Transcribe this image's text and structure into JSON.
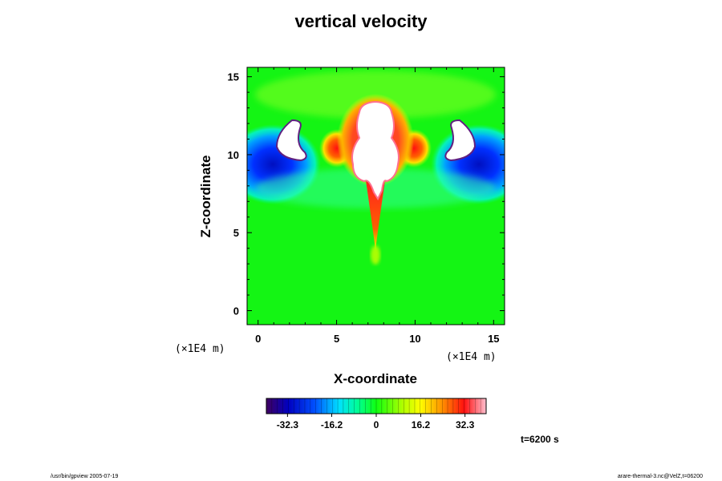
{
  "chart_data": {
    "type": "heatmap",
    "title": "vertical velocity",
    "xlabel": "X-coordinate",
    "ylabel": "Z-coordinate",
    "x_unit": "(×1E4 m)",
    "y_unit": "(×1E4 m)",
    "xlim": [
      -0.7,
      15.7
    ],
    "ylim": [
      -0.9,
      15.6
    ],
    "x_ticks": [
      0,
      5,
      10,
      15
    ],
    "y_ticks": [
      0,
      5,
      10,
      15
    ],
    "colorbar": {
      "min": -40,
      "max": 40,
      "ticks": [
        -32.3,
        -16.2,
        0,
        16.2,
        32.3
      ],
      "tick_labels": [
        "-32.3",
        "-16.2",
        "0",
        "16.2",
        "32.3"
      ],
      "colormap": "rainbow (blue-cyan-green-yellow-red-pink)",
      "out_of_range_color": "#ffffff"
    },
    "features": [
      {
        "name": "updraft core",
        "x": 7.5,
        "z": 11.5,
        "value": "above 40"
      },
      {
        "name": "updraft stem",
        "x": 7.5,
        "z": 6.0,
        "value": "positive"
      },
      {
        "name": "left downdraft",
        "x": 1.5,
        "z": 10.8,
        "value": "below -40"
      },
      {
        "name": "right downdraft",
        "x": 13.5,
        "z": 10.8,
        "value": "below -40"
      }
    ],
    "background_value": 0
  },
  "annotations": {
    "time": "t=6200 s",
    "footer_left": "/usr/bin/gpview 2005-07-19",
    "footer_right": "arare-thermal-3.nc@VelZ,t=06200"
  }
}
